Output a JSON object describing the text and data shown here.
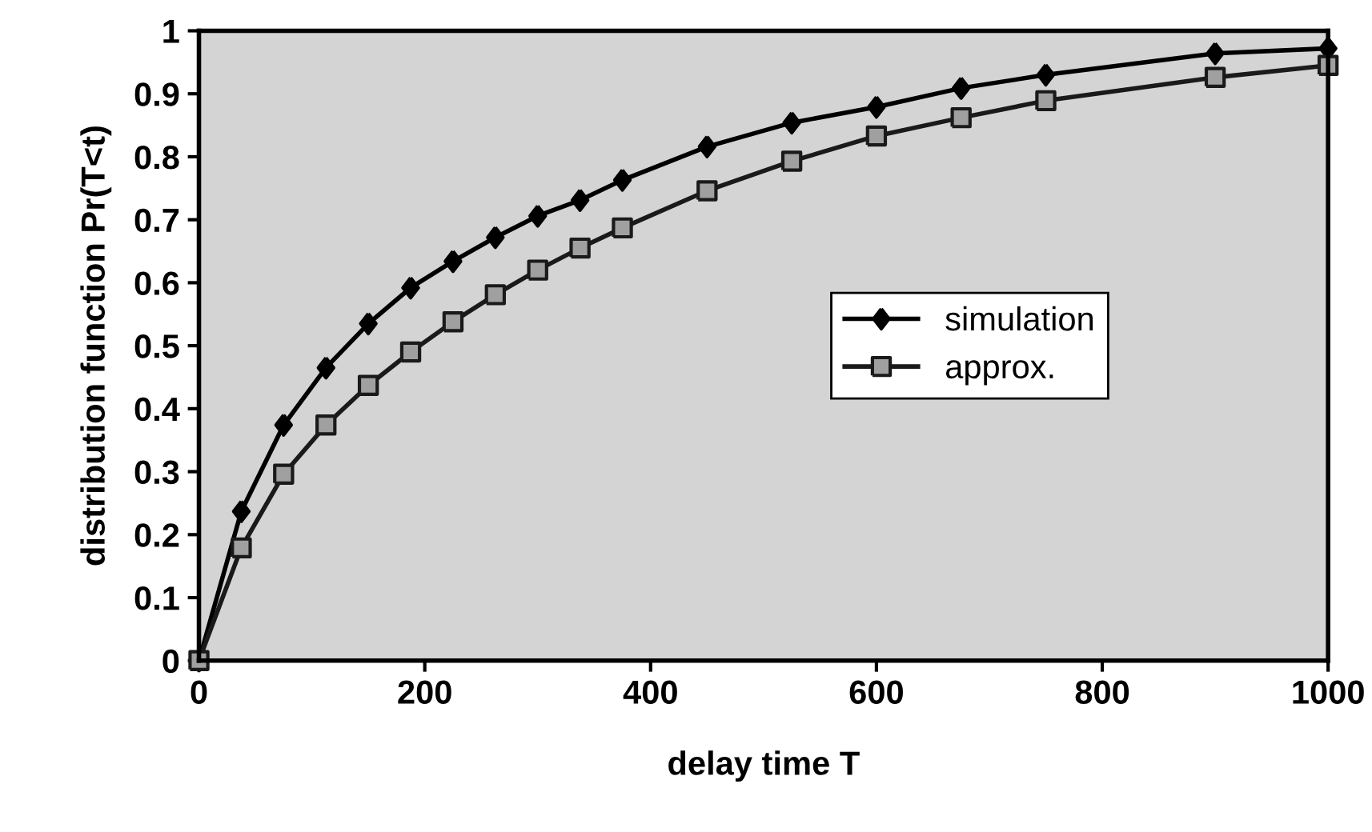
{
  "chart_data": {
    "type": "line",
    "xlabel": "delay time T",
    "ylabel": "distribution function Pr(T<t)",
    "x": [
      0,
      37.5,
      75,
      112.5,
      150,
      187.5,
      225,
      262.5,
      300,
      337.5,
      375,
      450,
      525,
      600,
      675,
      750,
      900,
      1000
    ],
    "series": [
      {
        "name": "simulation",
        "color": "#000000",
        "marker": "diamond",
        "values": [
          0,
          0.237,
          0.374,
          0.465,
          0.535,
          0.592,
          0.634,
          0.672,
          0.706,
          0.731,
          0.763,
          0.816,
          0.854,
          0.879,
          0.909,
          0.93,
          0.964,
          0.972
        ]
      },
      {
        "name": "approx.",
        "color": "#1a1a1a",
        "marker": "square",
        "values": [
          0,
          0.179,
          0.296,
          0.374,
          0.437,
          0.49,
          0.538,
          0.581,
          0.62,
          0.655,
          0.687,
          0.746,
          0.793,
          0.833,
          0.862,
          0.889,
          0.926,
          0.945
        ]
      }
    ],
    "xlim": [
      0,
      1000
    ],
    "xticks": [
      0,
      200,
      400,
      600,
      800,
      1000
    ],
    "ylim": [
      0,
      1
    ],
    "yticks": [
      0,
      0.1,
      0.2,
      0.3,
      0.4,
      0.5,
      0.6,
      0.7,
      0.8,
      0.9,
      1
    ],
    "grid": false,
    "legend": "right",
    "line_style": "solid"
  }
}
